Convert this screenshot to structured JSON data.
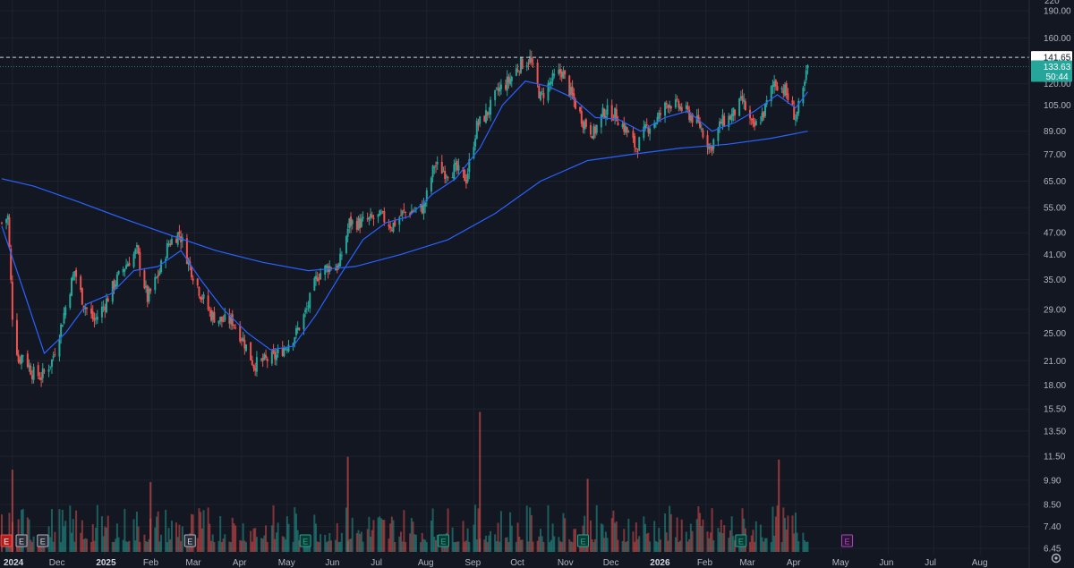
{
  "chart_data": {
    "type": "candlestick",
    "title": "",
    "scale": "log",
    "grid": true,
    "ylim": [
      6.2,
      215
    ],
    "y_ticks": [
      "190.00",
      "160.00",
      "141.65",
      "120.00",
      "105.00",
      "89.00",
      "77.00",
      "65.00",
      "55.00",
      "47.00",
      "41.00",
      "35.00",
      "29.00",
      "25.00",
      "21.00",
      "18.00",
      "15.50",
      "13.50",
      "11.50",
      "9.90",
      "8.50",
      "7.40",
      "6.45"
    ],
    "y_tick_values": [
      190,
      160,
      141.65,
      120,
      105,
      89,
      77,
      65,
      55,
      47,
      41,
      35,
      29,
      25,
      21,
      18,
      15.5,
      13.5,
      11.5,
      9.9,
      8.5,
      7.4,
      6.45
    ],
    "x_ticks": [
      {
        "label": "2024",
        "date": "2024-11-01",
        "year": true
      },
      {
        "label": "Dec",
        "date": "2024-12-01"
      },
      {
        "label": "2025",
        "date": "2025-01-01",
        "year": true
      },
      {
        "label": "Feb",
        "date": "2025-02-01"
      },
      {
        "label": "Mar",
        "date": "2025-03-01"
      },
      {
        "label": "Apr",
        "date": "2025-04-01"
      },
      {
        "label": "May",
        "date": "2025-05-01"
      },
      {
        "label": "Jun",
        "date": "2025-06-01"
      },
      {
        "label": "Jul",
        "date": "2025-07-01"
      },
      {
        "label": "Aug",
        "date": "2025-08-01"
      },
      {
        "label": "Sep",
        "date": "2025-09-01"
      },
      {
        "label": "Oct",
        "date": "2025-10-01"
      },
      {
        "label": "Nov",
        "date": "2025-11-01"
      },
      {
        "label": "Dec",
        "date": "2025-12-01"
      },
      {
        "label": "2026",
        "date": "2026-01-01",
        "year": true
      },
      {
        "label": "Feb",
        "date": "2026-02-01"
      },
      {
        "label": "Mar",
        "date": "2026-03-01"
      },
      {
        "label": "Apr",
        "date": "2026-04-01"
      },
      {
        "label": "May",
        "date": "2026-05-01"
      },
      {
        "label": "Jun",
        "date": "2026-06-01"
      },
      {
        "label": "Jul",
        "date": "2026-07-01"
      },
      {
        "label": "Aug",
        "date": "2026-08-01"
      }
    ],
    "top_tick_partial": "220",
    "price_series_closes": [
      {
        "date": "2024-10-25",
        "close": 50
      },
      {
        "date": "2024-10-29",
        "close": 52
      },
      {
        "date": "2024-11-01",
        "close": 28
      },
      {
        "date": "2024-11-05",
        "close": 21
      },
      {
        "date": "2024-11-08",
        "close": 22
      },
      {
        "date": "2024-11-14",
        "close": 19.5
      },
      {
        "date": "2024-11-20",
        "close": 19
      },
      {
        "date": "2024-11-27",
        "close": 21
      },
      {
        "date": "2024-12-03",
        "close": 26
      },
      {
        "date": "2024-12-08",
        "close": 32
      },
      {
        "date": "2024-12-12",
        "close": 37
      },
      {
        "date": "2024-12-18",
        "close": 30
      },
      {
        "date": "2024-12-25",
        "close": 27
      },
      {
        "date": "2025-01-01",
        "close": 30
      },
      {
        "date": "2025-01-07",
        "close": 34
      },
      {
        "date": "2025-01-14",
        "close": 38
      },
      {
        "date": "2025-01-22",
        "close": 42
      },
      {
        "date": "2025-01-29",
        "close": 31
      },
      {
        "date": "2025-02-05",
        "close": 36
      },
      {
        "date": "2025-02-12",
        "close": 44
      },
      {
        "date": "2025-02-19",
        "close": 47
      },
      {
        "date": "2025-02-26",
        "close": 38
      },
      {
        "date": "2025-03-05",
        "close": 32
      },
      {
        "date": "2025-03-12",
        "close": 28
      },
      {
        "date": "2025-03-19",
        "close": 27
      },
      {
        "date": "2025-03-26",
        "close": 27
      },
      {
        "date": "2025-04-02",
        "close": 24
      },
      {
        "date": "2025-04-09",
        "close": 20.5
      },
      {
        "date": "2025-04-16",
        "close": 21
      },
      {
        "date": "2025-04-23",
        "close": 21.5
      },
      {
        "date": "2025-04-30",
        "close": 23
      },
      {
        "date": "2025-05-07",
        "close": 25
      },
      {
        "date": "2025-05-14",
        "close": 29
      },
      {
        "date": "2025-05-21",
        "close": 36
      },
      {
        "date": "2025-05-28",
        "close": 38
      },
      {
        "date": "2025-06-04",
        "close": 38
      },
      {
        "date": "2025-06-11",
        "close": 50
      },
      {
        "date": "2025-06-18",
        "close": 50
      },
      {
        "date": "2025-06-25",
        "close": 51
      },
      {
        "date": "2025-07-02",
        "close": 52
      },
      {
        "date": "2025-07-09",
        "close": 49
      },
      {
        "date": "2025-07-16",
        "close": 53
      },
      {
        "date": "2025-07-23",
        "close": 54
      },
      {
        "date": "2025-07-30",
        "close": 55
      },
      {
        "date": "2025-08-06",
        "close": 72
      },
      {
        "date": "2025-08-13",
        "close": 69
      },
      {
        "date": "2025-08-20",
        "close": 70
      },
      {
        "date": "2025-08-27",
        "close": 66
      },
      {
        "date": "2025-09-03",
        "close": 92
      },
      {
        "date": "2025-09-10",
        "close": 100
      },
      {
        "date": "2025-09-17",
        "close": 115
      },
      {
        "date": "2025-09-24",
        "close": 122
      },
      {
        "date": "2025-10-01",
        "close": 135
      },
      {
        "date": "2025-10-08",
        "close": 140
      },
      {
        "date": "2025-10-15",
        "close": 110
      },
      {
        "date": "2025-10-22",
        "close": 122
      },
      {
        "date": "2025-10-29",
        "close": 130
      },
      {
        "date": "2025-11-05",
        "close": 110
      },
      {
        "date": "2025-11-12",
        "close": 95
      },
      {
        "date": "2025-11-19",
        "close": 88
      },
      {
        "date": "2025-11-26",
        "close": 101
      },
      {
        "date": "2025-12-03",
        "close": 99
      },
      {
        "date": "2025-12-10",
        "close": 90
      },
      {
        "date": "2025-12-17",
        "close": 80
      },
      {
        "date": "2025-12-24",
        "close": 91
      },
      {
        "date": "2025-12-31",
        "close": 96
      },
      {
        "date": "2026-01-07",
        "close": 107
      },
      {
        "date": "2026-01-14",
        "close": 104
      },
      {
        "date": "2026-01-21",
        "close": 99
      },
      {
        "date": "2026-01-28",
        "close": 92
      },
      {
        "date": "2026-02-04",
        "close": 80
      },
      {
        "date": "2026-02-11",
        "close": 94
      },
      {
        "date": "2026-02-18",
        "close": 98
      },
      {
        "date": "2026-02-25",
        "close": 108
      },
      {
        "date": "2026-03-04",
        "close": 90
      },
      {
        "date": "2026-03-11",
        "close": 100
      },
      {
        "date": "2026-03-18",
        "close": 122
      },
      {
        "date": "2026-03-25",
        "close": 115
      },
      {
        "date": "2026-04-01",
        "close": 97
      },
      {
        "date": "2026-04-06",
        "close": 113
      },
      {
        "date": "2026-04-09",
        "close": 133.63
      }
    ],
    "overlays": [
      {
        "type": "moving-average",
        "color": "#2962ff",
        "points": [
          {
            "date": "2024-10-25",
            "value": 49
          },
          {
            "date": "2024-11-08",
            "value": 33
          },
          {
            "date": "2024-11-22",
            "value": 22
          },
          {
            "date": "2024-12-06",
            "value": 25
          },
          {
            "date": "2024-12-20",
            "value": 30
          },
          {
            "date": "2025-01-05",
            "value": 32
          },
          {
            "date": "2025-01-20",
            "value": 37
          },
          {
            "date": "2025-02-05",
            "value": 38
          },
          {
            "date": "2025-02-20",
            "value": 42
          },
          {
            "date": "2025-03-05",
            "value": 35
          },
          {
            "date": "2025-03-20",
            "value": 29
          },
          {
            "date": "2025-04-05",
            "value": 25
          },
          {
            "date": "2025-04-20",
            "value": 22.5
          },
          {
            "date": "2025-05-05",
            "value": 23
          },
          {
            "date": "2025-05-20",
            "value": 28
          },
          {
            "date": "2025-06-05",
            "value": 36
          },
          {
            "date": "2025-06-20",
            "value": 45
          },
          {
            "date": "2025-07-05",
            "value": 50
          },
          {
            "date": "2025-07-20",
            "value": 52
          },
          {
            "date": "2025-08-05",
            "value": 60
          },
          {
            "date": "2025-08-20",
            "value": 66
          },
          {
            "date": "2025-09-05",
            "value": 80
          },
          {
            "date": "2025-09-20",
            "value": 105
          },
          {
            "date": "2025-10-05",
            "value": 122
          },
          {
            "date": "2025-10-20",
            "value": 118
          },
          {
            "date": "2025-11-05",
            "value": 110
          },
          {
            "date": "2025-11-20",
            "value": 97
          },
          {
            "date": "2025-12-05",
            "value": 96
          },
          {
            "date": "2025-12-20",
            "value": 89
          },
          {
            "date": "2026-01-05",
            "value": 97
          },
          {
            "date": "2026-01-20",
            "value": 101
          },
          {
            "date": "2026-02-05",
            "value": 89
          },
          {
            "date": "2026-02-20",
            "value": 94
          },
          {
            "date": "2026-03-05",
            "value": 101
          },
          {
            "date": "2026-03-20",
            "value": 112
          },
          {
            "date": "2026-04-01",
            "value": 103
          },
          {
            "date": "2026-04-09",
            "value": 114
          }
        ]
      },
      {
        "type": "moving-average",
        "color": "#2962ff",
        "points": [
          {
            "date": "2024-10-25",
            "value": 66
          },
          {
            "date": "2024-11-15",
            "value": 63
          },
          {
            "date": "2024-12-15",
            "value": 57
          },
          {
            "date": "2025-01-15",
            "value": 51
          },
          {
            "date": "2025-02-15",
            "value": 46
          },
          {
            "date": "2025-03-15",
            "value": 42
          },
          {
            "date": "2025-04-15",
            "value": 39
          },
          {
            "date": "2025-05-15",
            "value": 37
          },
          {
            "date": "2025-06-15",
            "value": 38
          },
          {
            "date": "2025-07-15",
            "value": 41
          },
          {
            "date": "2025-08-15",
            "value": 45
          },
          {
            "date": "2025-09-15",
            "value": 53
          },
          {
            "date": "2025-10-15",
            "value": 65
          },
          {
            "date": "2025-11-15",
            "value": 74
          },
          {
            "date": "2025-12-15",
            "value": 77
          },
          {
            "date": "2026-01-15",
            "value": 80
          },
          {
            "date": "2026-02-15",
            "value": 82
          },
          {
            "date": "2026-03-15",
            "value": 85
          },
          {
            "date": "2026-04-09",
            "value": 89
          }
        ]
      }
    ],
    "volume_peaks": [
      {
        "date": "2024-11-01",
        "value": 10.5
      },
      {
        "date": "2025-01-31",
        "value": 9.7
      },
      {
        "date": "2025-06-10",
        "value": 11.4
      },
      {
        "date": "2025-09-05",
        "value": 15.2
      },
      {
        "date": "2025-11-15",
        "value": 9.9
      },
      {
        "date": "2026-03-21",
        "value": 11.2
      }
    ],
    "high_level": {
      "label": "141.65",
      "value": 141.65,
      "style": "dashed"
    },
    "last_price": {
      "label": "133.63",
      "value": 133.63,
      "countdown": "50:44",
      "color": "#26a69a"
    },
    "earnings_markers": [
      {
        "date": "2024-10-28",
        "label": "E",
        "kind": "past-negative"
      },
      {
        "date": "2024-11-07",
        "label": "E",
        "kind": "past"
      },
      {
        "date": "2024-11-21",
        "label": "E",
        "kind": "past"
      },
      {
        "date": "2025-02-26",
        "label": "E",
        "kind": "past"
      },
      {
        "date": "2025-05-13",
        "label": "E",
        "kind": "past-positive"
      },
      {
        "date": "2025-08-12",
        "label": "E",
        "kind": "past-positive"
      },
      {
        "date": "2025-11-12",
        "label": "E",
        "kind": "past-positive"
      },
      {
        "date": "2026-02-24",
        "label": "E",
        "kind": "past-positive"
      },
      {
        "date": "2026-05-05",
        "label": "E",
        "kind": "upcoming"
      }
    ]
  },
  "colors": {
    "background": "#131722",
    "grid": "#1e222d",
    "up": "#26a69a",
    "down": "#ef5350",
    "ma": "#2962ff",
    "axis_text": "#b2b5be",
    "upcoming_earnings": "#ab47bc"
  },
  "icons": {
    "settings": "gear-icon"
  }
}
